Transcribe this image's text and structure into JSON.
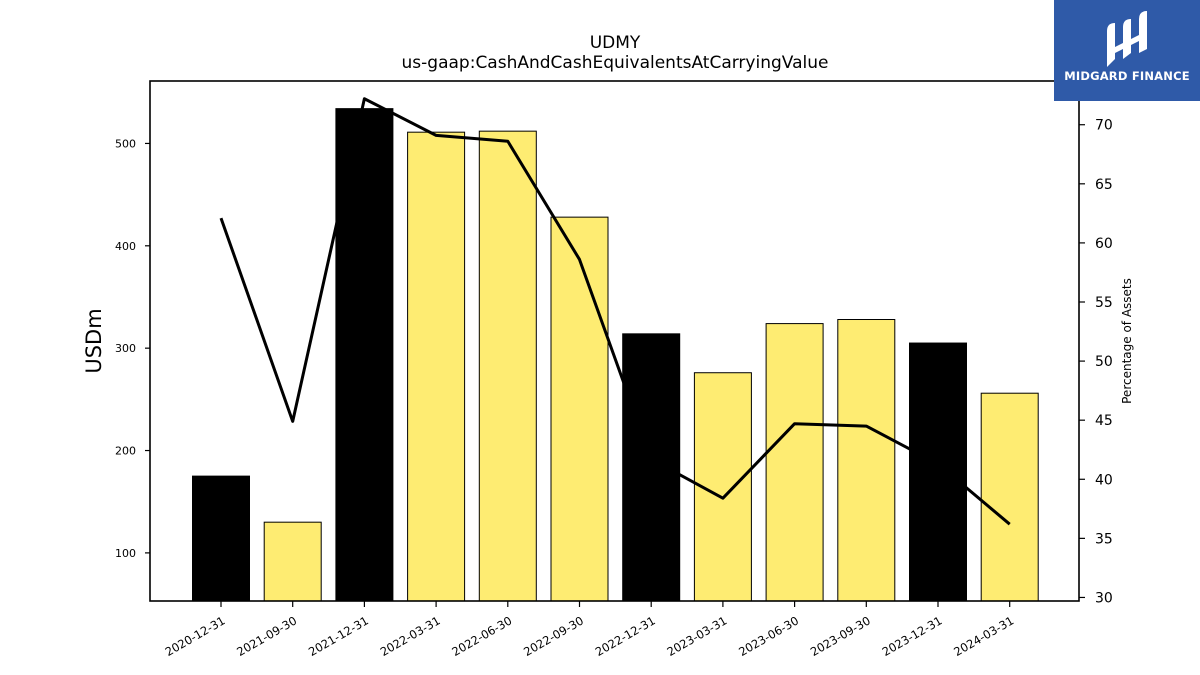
{
  "logo": {
    "text": "MIDGARD FINANCE"
  },
  "colors": {
    "annual_bar": "#000000",
    "quarter_bar": "#feec72",
    "line": "#000000",
    "logo_bg": "#2f5aa8"
  },
  "chart_data": {
    "type": "bar",
    "title": "UDMY",
    "subtitle": "us-gaap:CashAndCashEquivalentsAtCarryingValue",
    "ylabel": "USDm",
    "y2label": "Percentage of Assets",
    "categories": [
      "2020-12-31",
      "2021-09-30",
      "2021-12-31",
      "2022-03-31",
      "2022-06-30",
      "2022-09-30",
      "2022-12-31",
      "2023-03-31",
      "2023-06-30",
      "2023-09-30",
      "2023-12-31",
      "2024-03-31"
    ],
    "period_type": [
      "annual",
      "quarter",
      "annual",
      "quarter",
      "quarter",
      "quarter",
      "annual",
      "quarter",
      "quarter",
      "quarter",
      "annual",
      "quarter"
    ],
    "series": [
      {
        "axis": "left",
        "type": "bar",
        "values": [
          175,
          130,
          534,
          511,
          512,
          428,
          314,
          276,
          324,
          328,
          305,
          256
        ]
      },
      {
        "axis": "right",
        "type": "line",
        "values": [
          62.1,
          44.9,
          72.2,
          69.1,
          68.6,
          58.6,
          41.7,
          38.4,
          44.7,
          44.5,
          41.3,
          36.2
        ]
      }
    ],
    "ylim": [
      53,
      561
    ],
    "y2lim": [
      29.7,
      73.7
    ],
    "yticks": [
      100,
      200,
      300,
      400,
      500
    ],
    "y2ticks": [
      30,
      35,
      40,
      45,
      50,
      55,
      60,
      65,
      70
    ],
    "grid": false,
    "legend": "none"
  }
}
